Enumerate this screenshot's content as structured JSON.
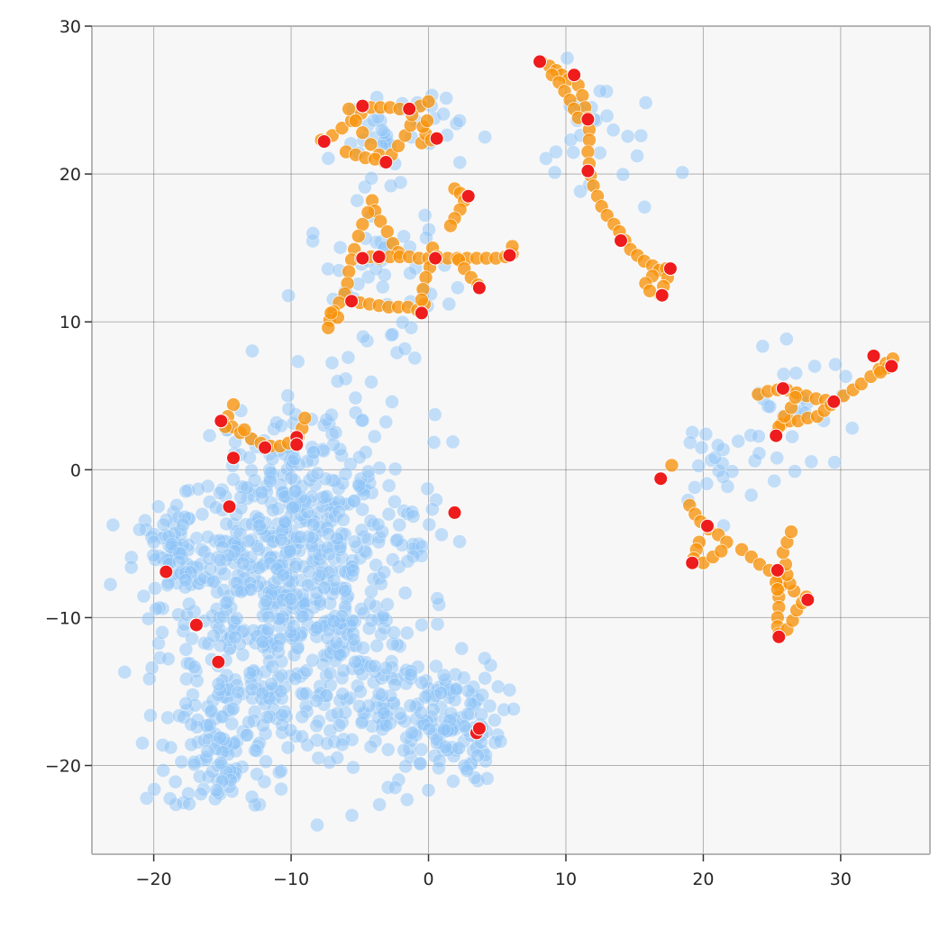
{
  "chart_data": {
    "type": "scatter",
    "title": "",
    "xlabel": "",
    "ylabel": "",
    "xlim": [
      -24.5,
      36.5
    ],
    "ylim": [
      -26,
      30
    ],
    "xticks": [
      -20,
      -10,
      0,
      10,
      20,
      30
    ],
    "yticks": [
      -20,
      -10,
      0,
      10,
      20,
      30
    ],
    "xtick_labels": [
      "−20",
      "−10",
      "0",
      "10",
      "20",
      "30"
    ],
    "ytick_labels": [
      "−20",
      "−10",
      "0",
      "10",
      "20",
      "30"
    ],
    "grid": true,
    "colors": {
      "background": "#f7f7f7",
      "grid": "#5a5a5a",
      "spine": "#b5b5b5",
      "blue": "#8ec3f7",
      "orange": "#f7940c",
      "red": "#ee1c1c"
    },
    "series": [
      {
        "color_key": "orange",
        "points": [
          [
            -7.8,
            22.3
          ],
          [
            -7,
            22.6
          ],
          [
            -6.3,
            23.1
          ],
          [
            -5.6,
            23.6
          ],
          [
            -4.9,
            24.1
          ],
          [
            -4.2,
            24.5
          ],
          [
            -3.5,
            24.5
          ],
          [
            -2.8,
            24.5
          ],
          [
            -2.1,
            24.4
          ],
          [
            -1.3,
            24.4
          ],
          [
            -0.6,
            24.6
          ],
          [
            0,
            24.9
          ],
          [
            -5.8,
            24.4
          ],
          [
            -5.3,
            23.6
          ],
          [
            -4.8,
            22.8
          ],
          [
            -4.2,
            22
          ],
          [
            -3.6,
            21.3
          ],
          [
            -3.2,
            20.8
          ],
          [
            -2.7,
            21.3
          ],
          [
            -2.2,
            21.9
          ],
          [
            -1.7,
            22.6
          ],
          [
            -1.3,
            23.3
          ],
          [
            -1.2,
            24
          ],
          [
            -6,
            21.5
          ],
          [
            -5.3,
            21.3
          ],
          [
            -4.6,
            21.1
          ],
          [
            -3.9,
            21
          ],
          [
            -0.5,
            22.1
          ],
          [
            -0.2,
            22.7
          ],
          [
            0.2,
            22.3
          ],
          [
            0.6,
            22.4
          ],
          [
            -0.4,
            23.2
          ],
          [
            -0.1,
            23.6
          ],
          [
            -4.1,
            18.2
          ],
          [
            -3.9,
            17.5
          ],
          [
            -3.5,
            16.8
          ],
          [
            -3,
            16.1
          ],
          [
            -2.6,
            15.3
          ],
          [
            -2.2,
            14.7
          ],
          [
            -4.4,
            17.4
          ],
          [
            -4.8,
            16.6
          ],
          [
            -5.1,
            15.8
          ],
          [
            -5.4,
            14.9
          ],
          [
            -5.6,
            14.2
          ],
          [
            -5.8,
            13.4
          ],
          [
            -5.9,
            12.6
          ],
          [
            -6.1,
            11.9
          ],
          [
            -6.5,
            11.3
          ],
          [
            -6.9,
            10.7
          ],
          [
            -7.2,
            10.1
          ],
          [
            -7.3,
            9.6
          ],
          [
            -4.9,
            14.3
          ],
          [
            -4.2,
            14.4
          ],
          [
            -3.6,
            14.3
          ],
          [
            -2.8,
            14.4
          ],
          [
            -2.1,
            14.4
          ],
          [
            -1.4,
            14.4
          ],
          [
            -0.7,
            14.3
          ],
          [
            0,
            14.3
          ],
          [
            0.7,
            14.3
          ],
          [
            1.4,
            14.3
          ],
          [
            2.1,
            14.3
          ],
          [
            2.8,
            14.3
          ],
          [
            3.5,
            14.3
          ],
          [
            4.2,
            14.3
          ],
          [
            4.9,
            14.3
          ],
          [
            5.6,
            14.4
          ],
          [
            6.1,
            14.6
          ],
          [
            6.1,
            15.1
          ],
          [
            -5,
            11.3
          ],
          [
            -4.3,
            11.2
          ],
          [
            -3.6,
            11.1
          ],
          [
            -2.9,
            11
          ],
          [
            -2.2,
            11
          ],
          [
            -1.5,
            11
          ],
          [
            -0.8,
            10.8
          ],
          [
            -0.3,
            11.2
          ],
          [
            0.3,
            15
          ],
          [
            0.6,
            14.4
          ],
          [
            0.1,
            13.7
          ],
          [
            -0.2,
            13
          ],
          [
            -0.4,
            12.2
          ],
          [
            -0.5,
            11.5
          ],
          [
            1.9,
            19
          ],
          [
            2.3,
            18.7
          ],
          [
            2.6,
            18.2
          ],
          [
            2.3,
            17.6
          ],
          [
            1.9,
            17
          ],
          [
            1.6,
            16.5
          ],
          [
            2.9,
            18.5
          ],
          [
            2.2,
            14.2
          ],
          [
            2.6,
            13.6
          ],
          [
            3.1,
            13
          ],
          [
            3.6,
            12.5
          ],
          [
            8.2,
            27.6
          ],
          [
            8.8,
            27.3
          ],
          [
            9.3,
            27
          ],
          [
            9.7,
            26.7
          ],
          [
            10.2,
            26.4
          ],
          [
            10.6,
            26.7
          ],
          [
            10.9,
            26
          ],
          [
            11.2,
            25.3
          ],
          [
            11.4,
            24.5
          ],
          [
            11.6,
            23.8
          ],
          [
            11.7,
            23
          ],
          [
            11.7,
            22.3
          ],
          [
            11.6,
            21.5
          ],
          [
            11.7,
            20.7
          ],
          [
            11.8,
            19.9
          ],
          [
            12,
            19.2
          ],
          [
            12.3,
            18.5
          ],
          [
            12.6,
            17.8
          ],
          [
            13,
            17.2
          ],
          [
            13.5,
            16.6
          ],
          [
            13.9,
            16.1
          ],
          [
            14.3,
            15.5
          ],
          [
            14.7,
            14.9
          ],
          [
            15.2,
            14.5
          ],
          [
            15.7,
            14.1
          ],
          [
            16.3,
            13.8
          ],
          [
            16.8,
            13.5
          ],
          [
            17.3,
            13.6
          ],
          [
            17.4,
            13
          ],
          [
            17.1,
            12.4
          ],
          [
            16.9,
            11.8
          ],
          [
            16.3,
            13.1
          ],
          [
            15.8,
            12.6
          ],
          [
            16.1,
            12.1
          ],
          [
            9,
            26.7
          ],
          [
            9.5,
            26.2
          ],
          [
            9.9,
            25.6
          ],
          [
            10.3,
            25
          ],
          [
            10.6,
            24.4
          ],
          [
            10.9,
            23.8
          ],
          [
            -14.2,
            4.4
          ],
          [
            -14.6,
            3.6
          ],
          [
            -14.3,
            2.9
          ],
          [
            -13.7,
            2.5
          ],
          [
            -12.9,
            2.1
          ],
          [
            -12.2,
            1.8
          ],
          [
            -11.5,
            1.6
          ],
          [
            -10.8,
            1.6
          ],
          [
            -10.2,
            1.8
          ],
          [
            -9.5,
            2.2
          ],
          [
            -9.2,
            2.8
          ],
          [
            -9,
            3.5
          ],
          [
            -13.4,
            2.7
          ],
          [
            -15,
            3.3
          ],
          [
            -14.8,
            2.9
          ],
          [
            17.7,
            0.3
          ],
          [
            19,
            -2.4
          ],
          [
            19.4,
            -3
          ],
          [
            19.8,
            -3.5
          ],
          [
            20.4,
            -4
          ],
          [
            21.1,
            -4.4
          ],
          [
            21.7,
            -4.9
          ],
          [
            19.7,
            -4.9
          ],
          [
            19.5,
            -5.4
          ],
          [
            19.3,
            -6
          ],
          [
            20,
            -6.3
          ],
          [
            20.7,
            -5.9
          ],
          [
            21.3,
            -5.5
          ],
          [
            22.8,
            -5.4
          ],
          [
            23.5,
            -5.9
          ],
          [
            24.1,
            -6.4
          ],
          [
            24.8,
            -6.8
          ],
          [
            25.5,
            -7.2
          ],
          [
            25.6,
            -7.9
          ],
          [
            25.5,
            -8.6
          ],
          [
            25.5,
            -9.3
          ],
          [
            25.4,
            -10
          ],
          [
            25.4,
            -10.6
          ],
          [
            25.5,
            -11.1
          ],
          [
            26.1,
            -10.8
          ],
          [
            26.5,
            -10.2
          ],
          [
            26.8,
            -9.5
          ],
          [
            27.2,
            -9
          ],
          [
            27.5,
            -8.6
          ],
          [
            26.6,
            -8.2
          ],
          [
            26.3,
            -7.7
          ],
          [
            26.1,
            -7.1
          ],
          [
            26,
            -6.4
          ],
          [
            25.8,
            -5.6
          ],
          [
            26.1,
            -4.9
          ],
          [
            26.4,
            -4.2
          ],
          [
            25.3,
            -7.6
          ],
          [
            25.4,
            -8.1
          ],
          [
            24,
            5.1
          ],
          [
            24.7,
            5.3
          ],
          [
            25.4,
            5.4
          ],
          [
            26.1,
            5.4
          ],
          [
            26.8,
            5.2
          ],
          [
            27.5,
            5
          ],
          [
            28.2,
            4.8
          ],
          [
            28.9,
            4.7
          ],
          [
            29.6,
            4.6
          ],
          [
            30.2,
            5
          ],
          [
            30.9,
            5.4
          ],
          [
            31.5,
            5.8
          ],
          [
            32.2,
            6.3
          ],
          [
            32.8,
            6.8
          ],
          [
            33.3,
            7.2
          ],
          [
            33.8,
            7.5
          ],
          [
            33.4,
            6.9
          ],
          [
            32.9,
            6.6
          ],
          [
            25.3,
            2.4
          ],
          [
            25.7,
            3.1
          ],
          [
            26.3,
            3.3
          ],
          [
            26.9,
            3.3
          ],
          [
            27.6,
            3.5
          ],
          [
            28.3,
            3.6
          ],
          [
            28.8,
            4
          ],
          [
            29.3,
            4.4
          ],
          [
            25.5,
            2.9
          ],
          [
            25.9,
            3.6
          ],
          [
            26.4,
            4.2
          ],
          [
            26.7,
            4.9
          ],
          [
            -6.6,
            10.3
          ],
          [
            -7.1,
            10.6
          ]
        ]
      },
      {
        "color_key": "red",
        "points": [
          [
            -7.6,
            22.2
          ],
          [
            -4.8,
            24.6
          ],
          [
            -1.4,
            24.4
          ],
          [
            0.6,
            22.4
          ],
          [
            -3.1,
            20.8
          ],
          [
            2.9,
            18.5
          ],
          [
            -4.8,
            14.3
          ],
          [
            -3.6,
            14.4
          ],
          [
            0.5,
            14.3
          ],
          [
            5.9,
            14.5
          ],
          [
            -5.6,
            11.4
          ],
          [
            -0.5,
            10.6
          ],
          [
            3.7,
            12.3
          ],
          [
            8.1,
            27.6
          ],
          [
            10.6,
            26.7
          ],
          [
            11.6,
            23.7
          ],
          [
            11.6,
            20.2
          ],
          [
            14,
            15.5
          ],
          [
            17.6,
            13.6
          ],
          [
            17,
            11.8
          ],
          [
            -15.1,
            3.3
          ],
          [
            -9.6,
            2.2
          ],
          [
            -9.6,
            1.7
          ],
          [
            -11.9,
            1.5
          ],
          [
            -14.2,
            0.8
          ],
          [
            -14.5,
            -2.5
          ],
          [
            1.9,
            -2.9
          ],
          [
            -19.1,
            -6.9
          ],
          [
            -16.9,
            -10.5
          ],
          [
            -15.3,
            -13
          ],
          [
            3.5,
            -17.8
          ],
          [
            3.7,
            -17.5
          ],
          [
            16.9,
            -0.6
          ],
          [
            20.3,
            -3.8
          ],
          [
            19.2,
            -6.3
          ],
          [
            25.4,
            -6.8
          ],
          [
            27.6,
            -8.8
          ],
          [
            25.5,
            -11.3
          ],
          [
            25.3,
            2.3
          ],
          [
            25.8,
            5.5
          ],
          [
            29.5,
            4.6
          ],
          [
            32.4,
            7.7
          ],
          [
            33.7,
            7
          ]
        ]
      }
    ]
  }
}
